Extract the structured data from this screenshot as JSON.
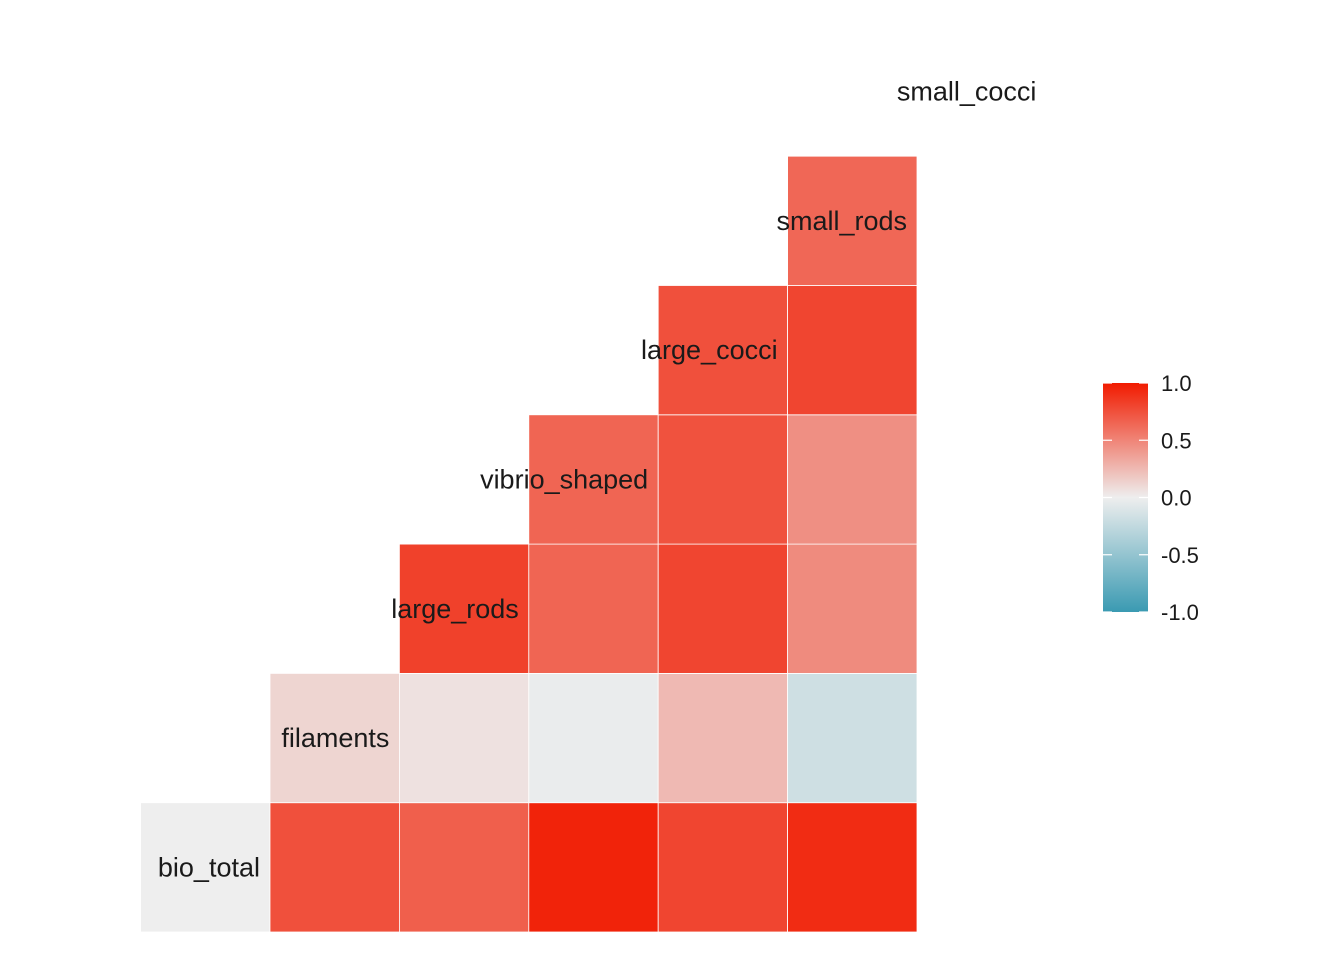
{
  "chart_data": {
    "type": "heatmap",
    "title": "",
    "variables": [
      "bio_total",
      "filaments",
      "large_rods",
      "vibrio_shaped",
      "large_cocci",
      "small_rods",
      "small_cocci"
    ],
    "cells": [
      {
        "row": "bio_total",
        "col": "bio_total",
        "value": 0.0
      },
      {
        "row": "bio_total",
        "col": "filaments",
        "value": 0.75
      },
      {
        "row": "bio_total",
        "col": "large_rods",
        "value": 0.68
      },
      {
        "row": "bio_total",
        "col": "vibrio_shaped",
        "value": 0.96
      },
      {
        "row": "bio_total",
        "col": "large_cocci",
        "value": 0.8
      },
      {
        "row": "bio_total",
        "col": "small_rods",
        "value": 0.92
      },
      {
        "row": "filaments",
        "col": "filaments",
        "value": 0.12
      },
      {
        "row": "filaments",
        "col": "large_rods",
        "value": 0.06
      },
      {
        "row": "filaments",
        "col": "vibrio_shaped",
        "value": -0.02
      },
      {
        "row": "filaments",
        "col": "large_cocci",
        "value": 0.25
      },
      {
        "row": "filaments",
        "col": "small_rods",
        "value": -0.18
      },
      {
        "row": "large_rods",
        "col": "large_rods",
        "value": 0.82
      },
      {
        "row": "large_rods",
        "col": "vibrio_shaped",
        "value": 0.65
      },
      {
        "row": "large_rods",
        "col": "large_cocci",
        "value": 0.8
      },
      {
        "row": "large_rods",
        "col": "small_rods",
        "value": 0.47
      },
      {
        "row": "vibrio_shaped",
        "col": "vibrio_shaped",
        "value": 0.65
      },
      {
        "row": "vibrio_shaped",
        "col": "large_cocci",
        "value": 0.74
      },
      {
        "row": "vibrio_shaped",
        "col": "small_rods",
        "value": 0.45
      },
      {
        "row": "large_cocci",
        "col": "large_cocci",
        "value": 0.75
      },
      {
        "row": "large_cocci",
        "col": "small_rods",
        "value": 0.8
      },
      {
        "row": "small_rods",
        "col": "small_rods",
        "value": 0.64
      }
    ],
    "legend": {
      "position": "right",
      "ticks": [
        "1.0",
        "0.5",
        "0.0",
        "-0.5",
        "-1.0"
      ],
      "range": [
        -1,
        1
      ],
      "colors": {
        "low": "#3A9AB2",
        "mid": "#EEEEEE",
        "high": "#F11B00"
      }
    },
    "grid": false
  }
}
